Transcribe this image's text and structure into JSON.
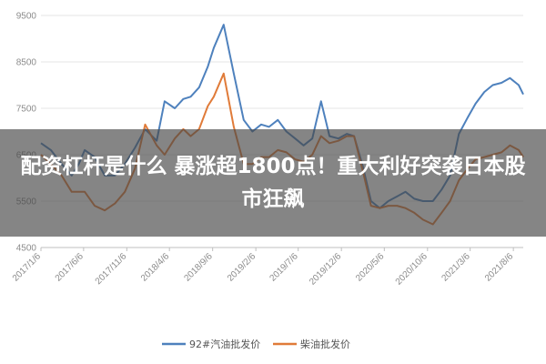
{
  "headline": "配资杠杆是什么 暴涨超1800点！重大利好突袭日本股市狂飙",
  "chart_data": {
    "type": "line",
    "ylim": [
      4500,
      9500
    ],
    "yticks": [
      4500,
      5500,
      6500,
      7500,
      8500,
      9500
    ],
    "x_range": [
      "2017-01-06",
      "2021-09-10"
    ],
    "xticks": [
      "2017/1/6",
      "2017/6/6",
      "2017/11/6",
      "2018/4/6",
      "2018/9/6",
      "2019/2/6",
      "2019/7/6",
      "2019/12/6",
      "2020/5/6",
      "2020/10/6",
      "2021/3/6",
      "2021/8/6"
    ],
    "grid": true,
    "legend_position": "bottom",
    "series": [
      {
        "name": "92#汽油批发价",
        "color": "#4e81bd",
        "points": [
          [
            "2017-01-06",
            6750
          ],
          [
            "2017-02-10",
            6600
          ],
          [
            "2017-03-20",
            6300
          ],
          [
            "2017-04-25",
            6050
          ],
          [
            "2017-05-20",
            6300
          ],
          [
            "2017-06-10",
            6600
          ],
          [
            "2017-07-15",
            6450
          ],
          [
            "2017-08-20",
            6050
          ],
          [
            "2017-09-25",
            6050
          ],
          [
            "2017-10-30",
            6300
          ],
          [
            "2017-12-05",
            6650
          ],
          [
            "2018-01-10",
            7050
          ],
          [
            "2018-02-20",
            6800
          ],
          [
            "2018-03-20",
            7650
          ],
          [
            "2018-04-25",
            7500
          ],
          [
            "2018-05-25",
            7700
          ],
          [
            "2018-06-20",
            7750
          ],
          [
            "2018-07-20",
            7950
          ],
          [
            "2018-08-20",
            8400
          ],
          [
            "2018-09-10",
            8800
          ],
          [
            "2018-10-15",
            9300
          ],
          [
            "2018-11-20",
            8250
          ],
          [
            "2018-12-25",
            7250
          ],
          [
            "2019-01-25",
            7000
          ],
          [
            "2019-02-25",
            7150
          ],
          [
            "2019-03-25",
            7100
          ],
          [
            "2019-04-25",
            7250
          ],
          [
            "2019-05-25",
            7000
          ],
          [
            "2019-06-25",
            6850
          ],
          [
            "2019-07-25",
            6700
          ],
          [
            "2019-08-25",
            6850
          ],
          [
            "2019-09-25",
            7650
          ],
          [
            "2019-10-25",
            6900
          ],
          [
            "2019-11-25",
            6850
          ],
          [
            "2019-12-25",
            6950
          ],
          [
            "2020-01-20",
            6900
          ],
          [
            "2020-02-20",
            6250
          ],
          [
            "2020-03-20",
            5500
          ],
          [
            "2020-04-20",
            5350
          ],
          [
            "2020-05-20",
            5500
          ],
          [
            "2020-06-20",
            5600
          ],
          [
            "2020-07-20",
            5700
          ],
          [
            "2020-08-20",
            5550
          ],
          [
            "2020-09-20",
            5500
          ],
          [
            "2020-10-25",
            5500
          ],
          [
            "2020-11-25",
            5750
          ],
          [
            "2020-12-25",
            6050
          ],
          [
            "2021-01-25",
            6950
          ],
          [
            "2021-02-25",
            7300
          ],
          [
            "2021-03-25",
            7600
          ],
          [
            "2021-04-25",
            7850
          ],
          [
            "2021-05-25",
            8000
          ],
          [
            "2021-06-25",
            8050
          ],
          [
            "2021-07-25",
            8150
          ],
          [
            "2021-08-25",
            8000
          ],
          [
            "2021-09-10",
            7800
          ]
        ]
      },
      {
        "name": "柴油批发价",
        "color": "#e07b39",
        "points": [
          [
            "2017-01-06",
            6500
          ],
          [
            "2017-02-10",
            6300
          ],
          [
            "2017-03-20",
            6050
          ],
          [
            "2017-04-25",
            5700
          ],
          [
            "2017-05-20",
            5700
          ],
          [
            "2017-06-10",
            5700
          ],
          [
            "2017-07-15",
            5400
          ],
          [
            "2017-08-20",
            5300
          ],
          [
            "2017-09-25",
            5450
          ],
          [
            "2017-10-30",
            5700
          ],
          [
            "2017-12-05",
            6200
          ],
          [
            "2018-01-10",
            7150
          ],
          [
            "2018-02-20",
            6700
          ],
          [
            "2018-03-20",
            6500
          ],
          [
            "2018-04-25",
            6850
          ],
          [
            "2018-05-25",
            7050
          ],
          [
            "2018-06-20",
            6900
          ],
          [
            "2018-07-20",
            7050
          ],
          [
            "2018-08-20",
            7550
          ],
          [
            "2018-09-10",
            7750
          ],
          [
            "2018-10-15",
            8250
          ],
          [
            "2018-11-20",
            7100
          ],
          [
            "2018-12-25",
            6300
          ],
          [
            "2019-01-25",
            6300
          ],
          [
            "2019-02-25",
            6450
          ],
          [
            "2019-03-25",
            6450
          ],
          [
            "2019-04-25",
            6600
          ],
          [
            "2019-05-25",
            6550
          ],
          [
            "2019-06-25",
            6400
          ],
          [
            "2019-07-25",
            6350
          ],
          [
            "2019-08-25",
            6500
          ],
          [
            "2019-09-25",
            6900
          ],
          [
            "2019-10-25",
            6750
          ],
          [
            "2019-11-25",
            6800
          ],
          [
            "2019-12-25",
            6900
          ],
          [
            "2020-01-20",
            6900
          ],
          [
            "2020-02-20",
            6150
          ],
          [
            "2020-03-20",
            5400
          ],
          [
            "2020-04-20",
            5350
          ],
          [
            "2020-05-20",
            5400
          ],
          [
            "2020-06-20",
            5400
          ],
          [
            "2020-07-20",
            5350
          ],
          [
            "2020-08-20",
            5250
          ],
          [
            "2020-09-20",
            5100
          ],
          [
            "2020-10-25",
            5000
          ],
          [
            "2020-11-25",
            5250
          ],
          [
            "2020-12-25",
            5500
          ],
          [
            "2021-01-25",
            5950
          ],
          [
            "2021-02-25",
            6200
          ],
          [
            "2021-03-25",
            6400
          ],
          [
            "2021-04-25",
            6450
          ],
          [
            "2021-05-25",
            6500
          ],
          [
            "2021-06-25",
            6550
          ],
          [
            "2021-07-25",
            6700
          ],
          [
            "2021-08-25",
            6600
          ],
          [
            "2021-09-10",
            6450
          ]
        ]
      }
    ]
  }
}
